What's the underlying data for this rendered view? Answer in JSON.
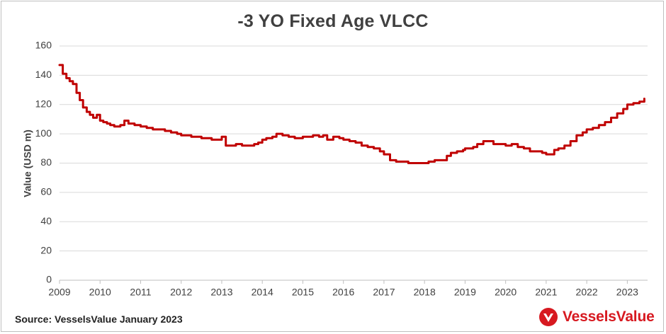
{
  "chart_data": {
    "type": "line",
    "title": "-3 YO Fixed Age VLCC",
    "ylabel": "Value (USD m)",
    "xlabel": "",
    "ylim": [
      0,
      160
    ],
    "xlim": [
      2009,
      2023.5
    ],
    "yticks": [
      0,
      20,
      40,
      60,
      80,
      100,
      120,
      140,
      160
    ],
    "xticks": [
      2009,
      2010,
      2011,
      2012,
      2013,
      2014,
      2015,
      2016,
      2017,
      2018,
      2019,
      2020,
      2021,
      2022,
      2023
    ],
    "grid": true,
    "line_color": "#c00000",
    "series": [
      {
        "x": [
          2009.0,
          2009.08,
          2009.17,
          2009.25,
          2009.33,
          2009.42,
          2009.5,
          2009.58,
          2009.67,
          2009.75,
          2009.83,
          2009.92,
          2010.0,
          2010.08,
          2010.17,
          2010.25,
          2010.35,
          2010.5,
          2010.6,
          2010.7,
          2010.85,
          2011.0,
          2011.15,
          2011.3,
          2011.45,
          2011.6,
          2011.75,
          2011.9,
          2012.0,
          2012.25,
          2012.5,
          2012.75,
          2012.95,
          2013.0,
          2013.1,
          2013.2,
          2013.35,
          2013.5,
          2013.65,
          2013.8,
          2013.9,
          2014.0,
          2014.1,
          2014.25,
          2014.35,
          2014.5,
          2014.65,
          2014.8,
          2015.0,
          2015.15,
          2015.25,
          2015.4,
          2015.5,
          2015.6,
          2015.75,
          2015.9,
          2016.0,
          2016.15,
          2016.3,
          2016.45,
          2016.6,
          2016.75,
          2016.9,
          2017.0,
          2017.15,
          2017.3,
          2017.45,
          2017.6,
          2017.75,
          2017.9,
          2018.0,
          2018.1,
          2018.25,
          2018.4,
          2018.55,
          2018.65,
          2018.8,
          2018.95,
          2019.0,
          2019.1,
          2019.2,
          2019.3,
          2019.45,
          2019.55,
          2019.7,
          2019.85,
          2020.0,
          2020.15,
          2020.3,
          2020.45,
          2020.6,
          2020.75,
          2020.9,
          2021.0,
          2021.1,
          2021.2,
          2021.3,
          2021.45,
          2021.6,
          2021.75,
          2021.9,
          2022.0,
          2022.15,
          2022.3,
          2022.45,
          2022.6,
          2022.75,
          2022.9,
          2023.0,
          2023.15,
          2023.3,
          2023.42
        ],
        "values": [
          147,
          141,
          138,
          136,
          134,
          128,
          123,
          118,
          115,
          113,
          111,
          113,
          109,
          108,
          107,
          106,
          105,
          106,
          109,
          107,
          106,
          105,
          104,
          103,
          103,
          102,
          101,
          100,
          99,
          98,
          97,
          96,
          96,
          98,
          92,
          92,
          93,
          92,
          92,
          93,
          94,
          96,
          97,
          98,
          100,
          99,
          98,
          97,
          98,
          98,
          99,
          98,
          99,
          96,
          98,
          97,
          96,
          95,
          94,
          92,
          91,
          90,
          88,
          86,
          82,
          81,
          81,
          80,
          80,
          80,
          80,
          81,
          82,
          82,
          85,
          87,
          88,
          89,
          90,
          90,
          91,
          93,
          95,
          95,
          93,
          93,
          92,
          93,
          91,
          90,
          88,
          88,
          87,
          86,
          86,
          89,
          90,
          92,
          95,
          99,
          101,
          103,
          104,
          106,
          108,
          111,
          114,
          117,
          120,
          121,
          122,
          124
        ]
      }
    ]
  },
  "footer": {
    "source": "Source: VesselsValue January 2023",
    "brand": "VesselsValue",
    "brand_color": "#d71920",
    "logo_icon": "vesselsvalue-logo-icon"
  }
}
